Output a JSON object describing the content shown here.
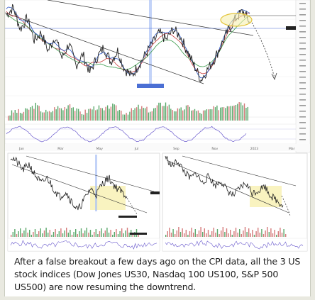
{
  "caption": "After a false breakout a few days ago on the CPI data, all the 3 US stock indices (Dow Jones US30, Nasdaq 100 US100, S&P 500 US500) are now resuming the downtrend.",
  "colors": {
    "price": "#2b2b2b",
    "ma_blue": "#2a56c6",
    "ma_red": "#c83c3c",
    "ma_green": "#3a9a4a",
    "volume_up": "#5aa86a",
    "volume_down": "#d47a7a",
    "highlight_zone": "#f7f0b0",
    "vertical_marker": "#6a8fe0",
    "trendline": "#333333"
  },
  "chart_data": [
    {
      "type": "line",
      "role": "main-price-chart",
      "x_tick_labels": [
        "Jan",
        "Mar",
        "May",
        "Jul",
        "Sep",
        "Nov",
        "2023",
        "Mar"
      ],
      "values": [
        100,
        102,
        96,
        99,
        93,
        95,
        90,
        94,
        88,
        92,
        86,
        89,
        84,
        88,
        91,
        87,
        90,
        85,
        83,
        86,
        89,
        92,
        95,
        93,
        96,
        94,
        90,
        86,
        82,
        85,
        88,
        92,
        96,
        99,
        101,
        98
      ],
      "annotations": [
        "false breakout",
        "downtrend"
      ]
    },
    {
      "type": "bar",
      "role": "main-volume",
      "values": [
        3,
        5,
        4,
        6,
        8,
        5,
        4,
        7,
        6,
        9,
        5,
        4,
        6,
        7,
        5,
        8,
        6,
        4,
        5,
        7,
        6,
        5,
        8,
        9,
        6,
        5,
        7,
        6,
        4,
        5,
        6,
        7,
        8,
        9,
        10,
        7
      ]
    },
    {
      "type": "line",
      "role": "secondary-chart-left",
      "values": [
        100,
        98,
        95,
        97,
        93,
        90,
        92,
        88,
        85,
        87,
        83,
        80,
        84,
        88,
        86,
        90,
        92,
        89,
        87,
        85
      ]
    },
    {
      "type": "line",
      "role": "secondary-chart-right",
      "values": [
        100,
        96,
        98,
        94,
        91,
        93,
        89,
        92,
        88,
        90,
        86,
        84,
        87,
        89,
        85,
        86,
        88,
        84,
        82,
        80
      ]
    }
  ]
}
